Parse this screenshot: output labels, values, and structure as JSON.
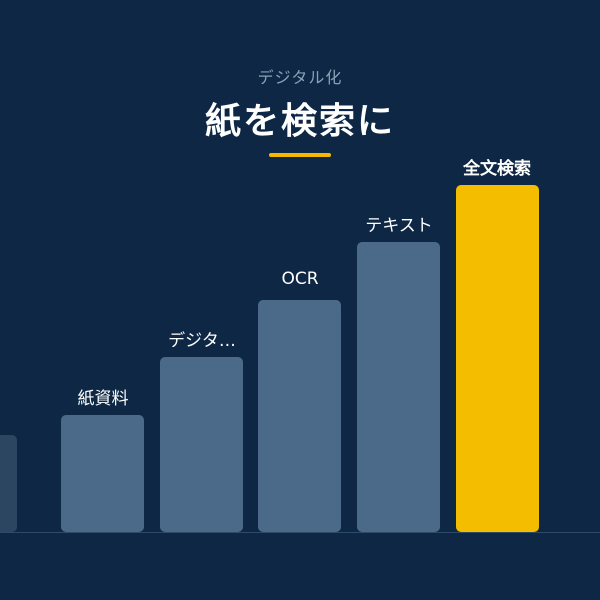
{
  "header": {
    "subtitle": "デジタル化",
    "title": "紙を検索に"
  },
  "colors": {
    "background": "#0d2744",
    "bar": "#4b6a8a",
    "bar_faded": "#2c4661",
    "highlight": "#f5bd00",
    "accent_line": "#f5b800"
  },
  "steps": [
    {
      "label": ""
    },
    {
      "label": "紙資料"
    },
    {
      "label": "デジタ…"
    },
    {
      "label": "OCR"
    },
    {
      "label": "テキスト"
    },
    {
      "label": "全文検索",
      "highlight": true
    }
  ]
}
